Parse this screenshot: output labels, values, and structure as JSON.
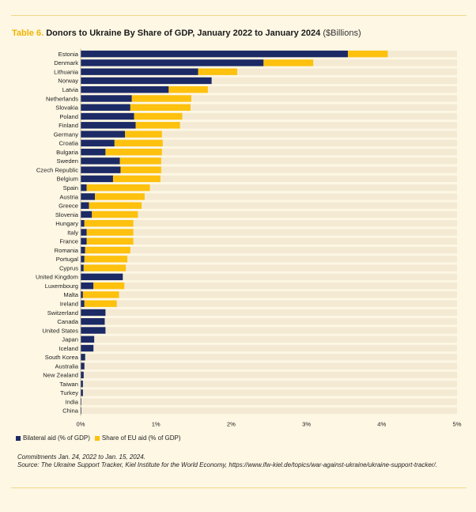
{
  "header": {
    "table_number": "Table 6.",
    "title": "Donors to Ukraine By Share of GDP, January 2022 to January 2024",
    "unit": "($Billions)"
  },
  "colors": {
    "background": "#fdf7e4",
    "plot_background": "#f4ead4",
    "bilateral": "#1c2a66",
    "eu": "#fdc10e",
    "accent": "#f0b400"
  },
  "chart_data": {
    "type": "bar",
    "orientation": "horizontal",
    "stacked": true,
    "categories": [
      "Estonia",
      "Denmark",
      "Lithuania",
      "Norway",
      "Latvia",
      "Netherlands",
      "Slovakia",
      "Poland",
      "Finland",
      "Germany",
      "Croatia",
      "Bulgaria",
      "Sweden",
      "Czech Republic",
      "Belgium",
      "Spain",
      "Austria",
      "Greece",
      "Slovenia",
      "Hungary",
      "Italy",
      "France",
      "Romania",
      "Portugal",
      "Cyprus",
      "United Kingdom",
      "Luxembourg",
      "Malta",
      "Ireland",
      "Switzerland",
      "Canada",
      "United States",
      "Japan",
      "Iceland",
      "South Korea",
      "Australia",
      "New Zealand",
      "Taiwan",
      "Turkey",
      "India",
      "China"
    ],
    "series": [
      {
        "name": "Bilateral aid (% of GDP)",
        "values": [
          3.55,
          2.43,
          1.56,
          1.74,
          1.17,
          0.68,
          0.66,
          0.71,
          0.73,
          0.59,
          0.45,
          0.33,
          0.52,
          0.53,
          0.43,
          0.08,
          0.19,
          0.11,
          0.15,
          0.05,
          0.08,
          0.08,
          0.06,
          0.05,
          0.04,
          0.56,
          0.17,
          0.03,
          0.05,
          0.33,
          0.32,
          0.33,
          0.18,
          0.17,
          0.06,
          0.05,
          0.04,
          0.03,
          0.03,
          0.01,
          0.01
        ]
      },
      {
        "name": "Share of EU aid (% of GDP)",
        "values": [
          0.53,
          0.66,
          0.52,
          0,
          0.52,
          0.79,
          0.8,
          0.64,
          0.59,
          0.49,
          0.64,
          0.75,
          0.55,
          0.54,
          0.63,
          0.84,
          0.66,
          0.7,
          0.61,
          0.65,
          0.62,
          0.62,
          0.6,
          0.57,
          0.56,
          0,
          0.41,
          0.48,
          0.43,
          0,
          0,
          0,
          0,
          0,
          0,
          0,
          0,
          0,
          0,
          0,
          0
        ]
      }
    ],
    "x_ticks": [
      "0%",
      "1%",
      "2%",
      "3%",
      "4%",
      "5%"
    ],
    "xlim": [
      0,
      5
    ],
    "legend_position": "bottom-left",
    "grid": false
  },
  "notes": {
    "line1": "Commitments Jan. 24, 2022 to Jan. 15, 2024.",
    "line2": "Source: The Ukraine Support Tracker, Kiel Institute for the World Economy, https://www.ifw-kiel.de/topics/war-against-ukraine/ukraine-support-tracker/."
  }
}
